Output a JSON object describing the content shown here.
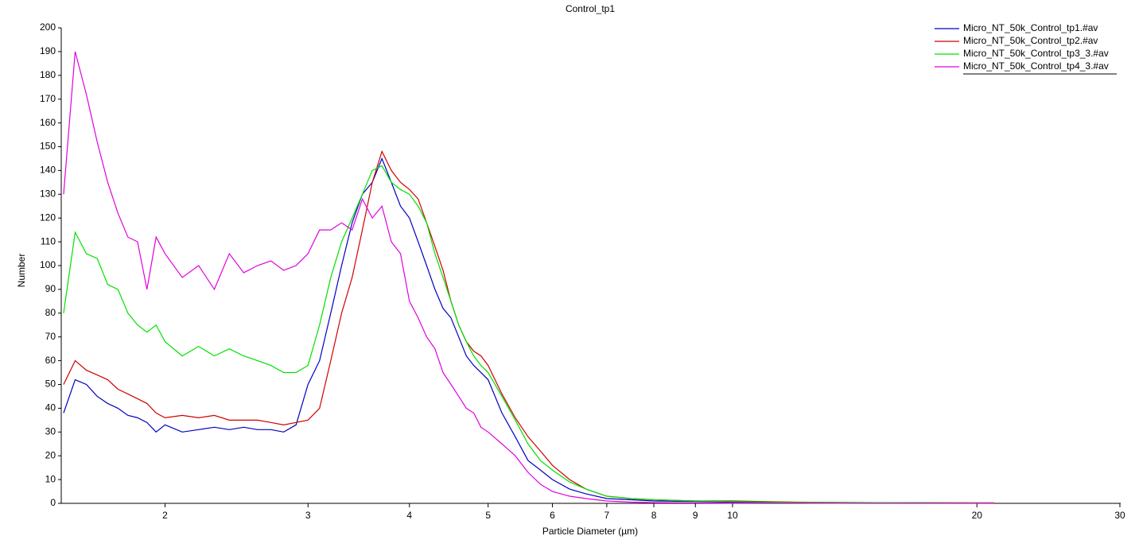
{
  "chart_data": {
    "type": "line",
    "title": "Control_tp1",
    "x_label": "Particle Diameter (µm)",
    "y_label": "Number",
    "xscale": "log",
    "xlim": [
      1.49,
      30
    ],
    "ylim": [
      0,
      200
    ],
    "xticks": [
      2,
      3,
      4,
      5,
      6,
      7,
      8,
      9,
      10,
      20,
      30
    ],
    "yticks": [
      0,
      10,
      20,
      30,
      40,
      50,
      60,
      70,
      80,
      90,
      100,
      110,
      120,
      130,
      140,
      150,
      160,
      170,
      180,
      190,
      200
    ],
    "grid": false,
    "legend": "top-right",
    "x": [
      1.5,
      1.55,
      1.6,
      1.65,
      1.7,
      1.75,
      1.8,
      1.85,
      1.9,
      1.95,
      2.0,
      2.1,
      2.2,
      2.3,
      2.4,
      2.5,
      2.6,
      2.7,
      2.8,
      2.9,
      3.0,
      3.1,
      3.2,
      3.3,
      3.4,
      3.5,
      3.6,
      3.7,
      3.8,
      3.9,
      4.0,
      4.1,
      4.2,
      4.3,
      4.4,
      4.5,
      4.6,
      4.7,
      4.8,
      4.9,
      5.0,
      5.2,
      5.4,
      5.6,
      5.8,
      6.0,
      6.3,
      6.6,
      7.0,
      7.5,
      8,
      9,
      10,
      12,
      15,
      18,
      21
    ],
    "series": [
      {
        "name": "Micro_NT_50k_Control_tp1.#av",
        "color": "#0000c0",
        "values": [
          38,
          52,
          50,
          45,
          42,
          40,
          37,
          36,
          34,
          30,
          33,
          30,
          31,
          32,
          31,
          32,
          31,
          31,
          30,
          33,
          50,
          60,
          80,
          100,
          118,
          130,
          135,
          145,
          135,
          125,
          120,
          110,
          100,
          90,
          82,
          78,
          70,
          62,
          58,
          55,
          52,
          38,
          28,
          18,
          14,
          10,
          6,
          4,
          2,
          1.5,
          1,
          0.8,
          0.5,
          0.3,
          0.3,
          0.2,
          0.1
        ]
      },
      {
        "name": "Micro_NT_50k_Control_tp2.#av",
        "color": "#d00000",
        "values": [
          50,
          60,
          56,
          54,
          52,
          48,
          46,
          44,
          42,
          38,
          36,
          37,
          36,
          37,
          35,
          35,
          35,
          34,
          33,
          34,
          35,
          40,
          60,
          80,
          95,
          115,
          135,
          148,
          140,
          135,
          132,
          128,
          118,
          108,
          98,
          85,
          75,
          68,
          64,
          62,
          58,
          46,
          36,
          28,
          22,
          16,
          10,
          6,
          3,
          2,
          1.5,
          1,
          1,
          0.5,
          0.3,
          0.2,
          0.2
        ]
      },
      {
        "name": "Micro_NT_50k_Control_tp3_3.#av",
        "color": "#00e000",
        "values": [
          80,
          114,
          105,
          103,
          92,
          90,
          80,
          75,
          72,
          75,
          68,
          62,
          66,
          62,
          65,
          62,
          60,
          58,
          55,
          55,
          58,
          75,
          95,
          110,
          120,
          130,
          140,
          142,
          135,
          132,
          130,
          125,
          118,
          105,
          95,
          85,
          75,
          68,
          62,
          58,
          55,
          45,
          35,
          25,
          18,
          14,
          9,
          6,
          3,
          2,
          1.5,
          1,
          0.8,
          0.4,
          0.3,
          0.2,
          0.1
        ]
      },
      {
        "name": "Micro_NT_50k_Control_tp4_3.#av",
        "color": "#e000e0",
        "values": [
          130,
          190,
          172,
          152,
          135,
          122,
          112,
          110,
          90,
          112,
          105,
          95,
          100,
          90,
          105,
          97,
          100,
          102,
          98,
          100,
          105,
          115,
          115,
          118,
          115,
          128,
          120,
          125,
          110,
          105,
          85,
          78,
          70,
          65,
          55,
          50,
          45,
          40,
          38,
          32,
          30,
          25,
          20,
          13,
          8,
          5,
          3,
          2,
          1,
          0.5,
          0.3,
          0.2,
          0.1,
          0.1,
          0,
          0,
          0
        ]
      }
    ]
  }
}
